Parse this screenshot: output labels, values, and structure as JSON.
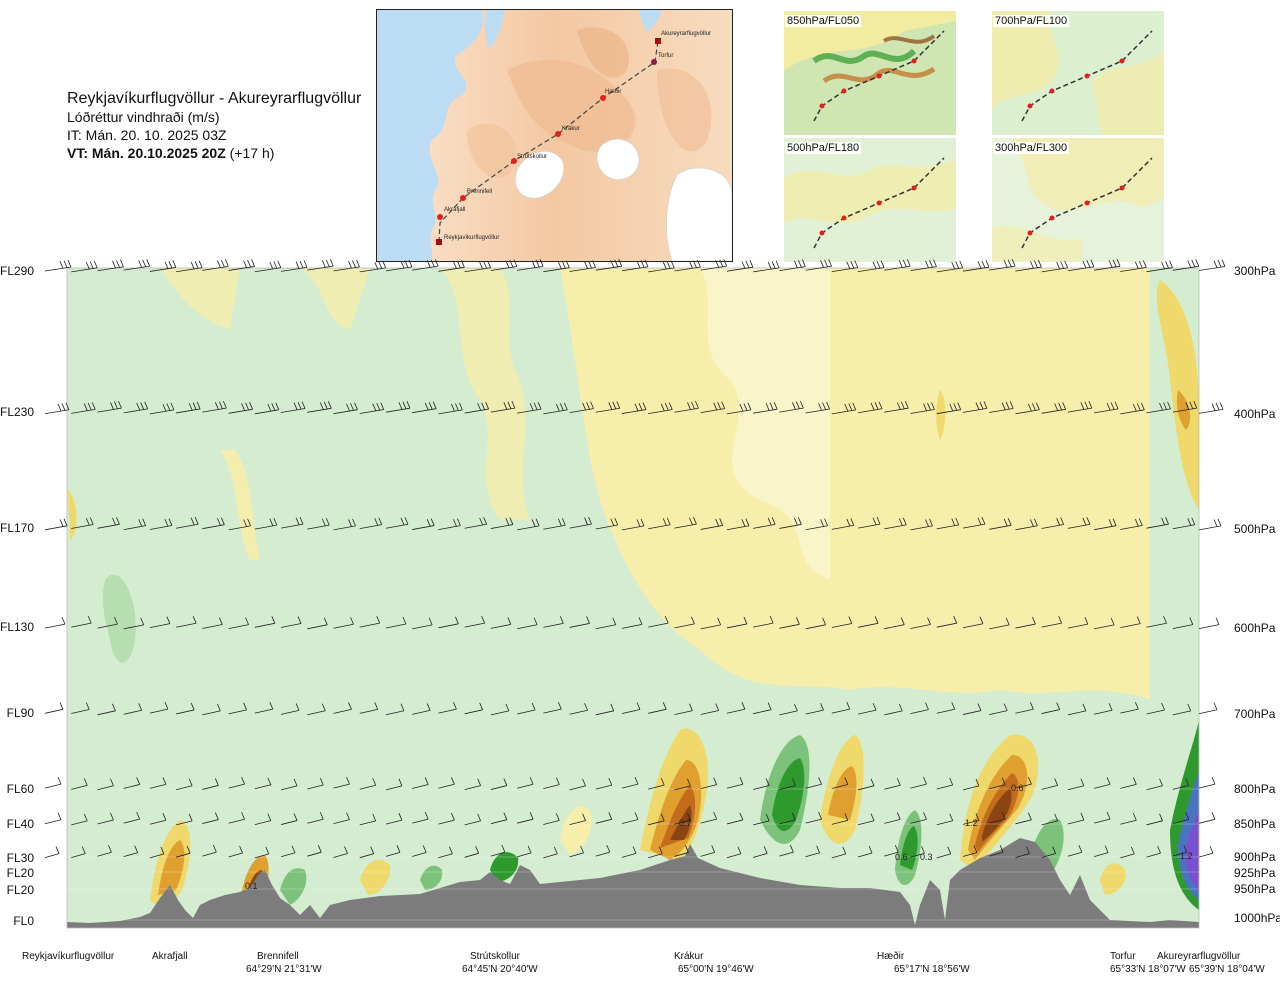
{
  "header": {
    "route": "Reykjavíkurflugvöllur - Akureyrarflugvöllur",
    "product": "Lóðréttur vindhraði (m/s)",
    "init_time": "IT: Mán. 20. 10. 2025 03Z",
    "valid_time": "VT: Mán. 20.10.2025 20Z",
    "lead": "(+17 h)"
  },
  "map": {
    "places": [
      {
        "name": "Akureyrarflugvöllur",
        "kind": "airport"
      },
      {
        "name": "Torfur",
        "kind": "point"
      },
      {
        "name": "Hæðir",
        "kind": "point"
      },
      {
        "name": "Krákur",
        "kind": "point"
      },
      {
        "name": "Strútskollur",
        "kind": "point"
      },
      {
        "name": "Brennifell",
        "kind": "point"
      },
      {
        "name": "Akrafjall",
        "kind": "point"
      },
      {
        "name": "Reykjavíkurflugvöllur",
        "kind": "airport"
      }
    ]
  },
  "mini_maps": [
    {
      "label": "850hPa/FL050"
    },
    {
      "label": "700hPa/FL100"
    },
    {
      "label": "500hPa/FL180"
    },
    {
      "label": "300hPa/FL300"
    }
  ],
  "chart_data": {
    "type": "heatmap",
    "title": "Lóðréttur vindhraði (m/s)",
    "levels": [
      {
        "fl": "FL290",
        "hpa": "300hPa"
      },
      {
        "fl": "FL230",
        "hpa": "400hPa"
      },
      {
        "fl": "FL170",
        "hpa": "500hPa"
      },
      {
        "fl": "FL130",
        "hpa": "600hPa"
      },
      {
        "fl": "FL90",
        "hpa": "700hPa"
      },
      {
        "fl": "FL60",
        "hpa": "800hPa"
      },
      {
        "fl": "FL40",
        "hpa": "850hPa"
      },
      {
        "fl": "FL30",
        "hpa": "900hPa"
      },
      {
        "fl": "FL20",
        "hpa": "925hPa"
      },
      {
        "fl": "FL20",
        "hpa": "950hPa"
      },
      {
        "fl": "FL0",
        "hpa": "1000hPa"
      }
    ],
    "waypoints": [
      {
        "name": "Reykjavíkurflugvöllur",
        "coord": ""
      },
      {
        "name": "Akrafjall",
        "coord": ""
      },
      {
        "name": "Brennifell",
        "coord": "64°29'N 21°31'W"
      },
      {
        "name": "Strútskollur",
        "coord": "64°45'N 20°40'W"
      },
      {
        "name": "Krákur",
        "coord": "65°00'N 19°46'W"
      },
      {
        "name": "Hæðir",
        "coord": "65°17'N 18°56'W"
      },
      {
        "name": "Torfur",
        "coord": "65°33'N 18°07'W"
      },
      {
        "name": "Akureyrarflugvöllur",
        "coord": "65°39'N 18°04'W"
      }
    ],
    "value_labels": [
      "0.1",
      "0.7",
      "0.6",
      "0.3",
      "1.2",
      "0.6",
      "1.2"
    ],
    "colors": {
      "neg_strong": "#2e9a2e",
      "neg_mid": "#7cc27a",
      "neg_weak": "#b6deb0",
      "neg_faint": "#d4ecd0",
      "near_zero": "#fbfbe0",
      "pos_weak": "#f6eeaa",
      "pos_mid": "#eed96a",
      "pos_strong": "#e0a030",
      "pos_very": "#c26c1c",
      "pos_max": "#8b4513",
      "down_max": "#4a74c0",
      "down_extreme": "#7a4fd0",
      "terrain": "#7c7c7c"
    }
  }
}
